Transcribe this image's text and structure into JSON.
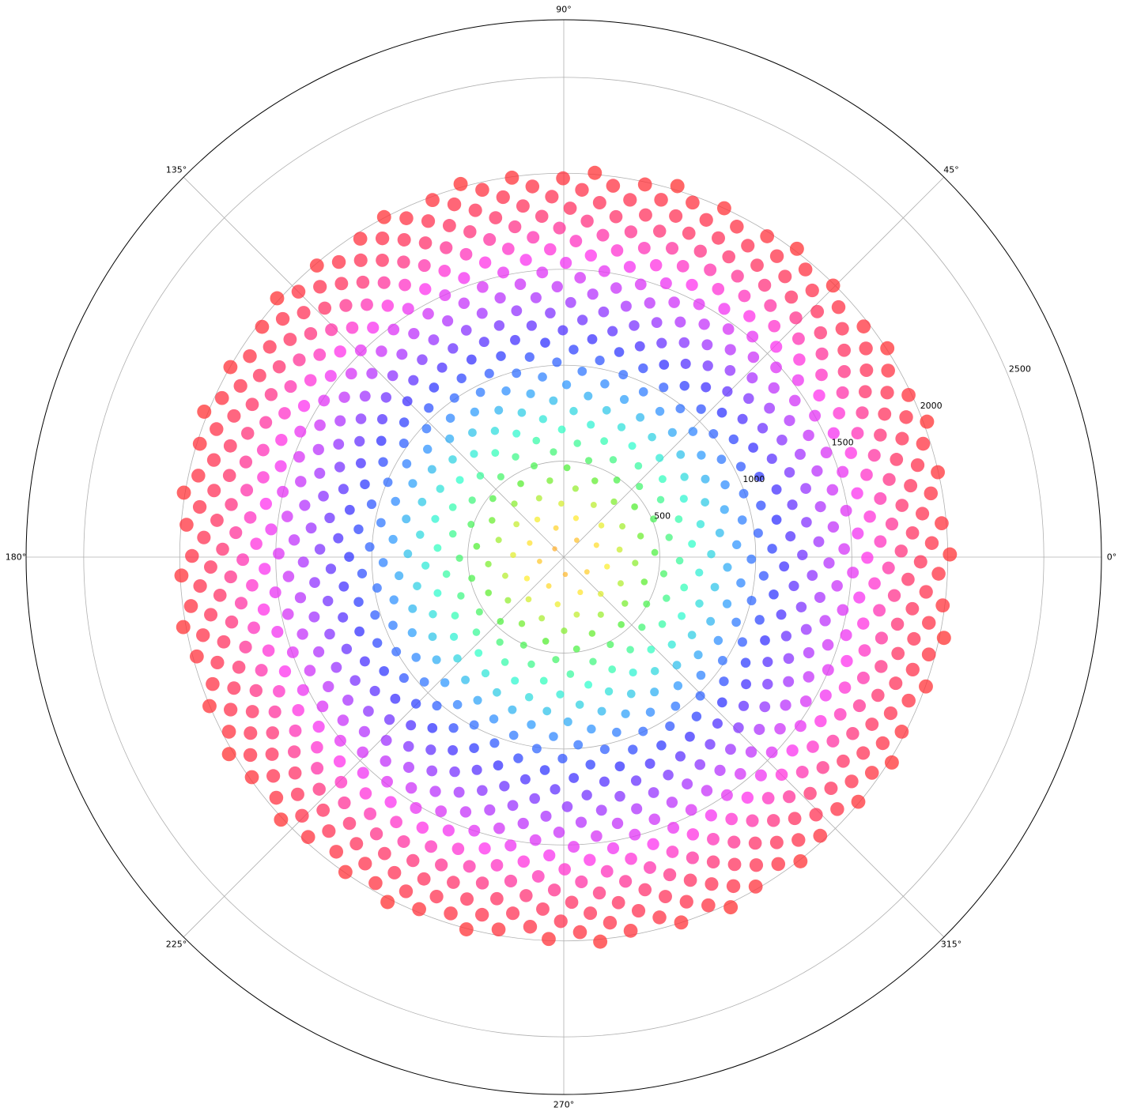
{
  "chart_data": {
    "type": "scatter",
    "projection": "polar",
    "title": "",
    "xlabel": "",
    "ylabel": "",
    "grid": true,
    "legend": false,
    "theta_tick_labels": [
      "0°",
      "45°",
      "90°",
      "135°",
      "180°",
      "225°",
      "270°",
      "315°"
    ],
    "theta_ticks_deg": [
      0,
      45,
      90,
      135,
      180,
      225,
      270,
      315
    ],
    "r_tick_labels": [
      "500",
      "1000",
      "1500",
      "2000",
      "2500"
    ],
    "r_ticks": [
      500,
      1000,
      1500,
      2000,
      2500
    ],
    "rlim": [
      0,
      2800
    ],
    "r_label_angle_deg": 22.5,
    "series": [
      {
        "pattern": "phyllotaxis (golden-angle spiral)",
        "point_count": 1000,
        "golden_angle_deg": 137.508,
        "r_formula": "r = 64 * sqrt(n)",
        "r_range": [
          0,
          2024
        ],
        "marker_size_range": [
          3,
          9
        ],
        "alpha": 0.75,
        "colormap": "hsv, reversed, by radius",
        "color_stops": [
          "#ff9933",
          "#ffee33",
          "#55ee33",
          "#33ffcc",
          "#3399ff",
          "#3333ff",
          "#aa33ff",
          "#ff33ee",
          "#ff3366",
          "#ff3333"
        ]
      }
    ]
  }
}
